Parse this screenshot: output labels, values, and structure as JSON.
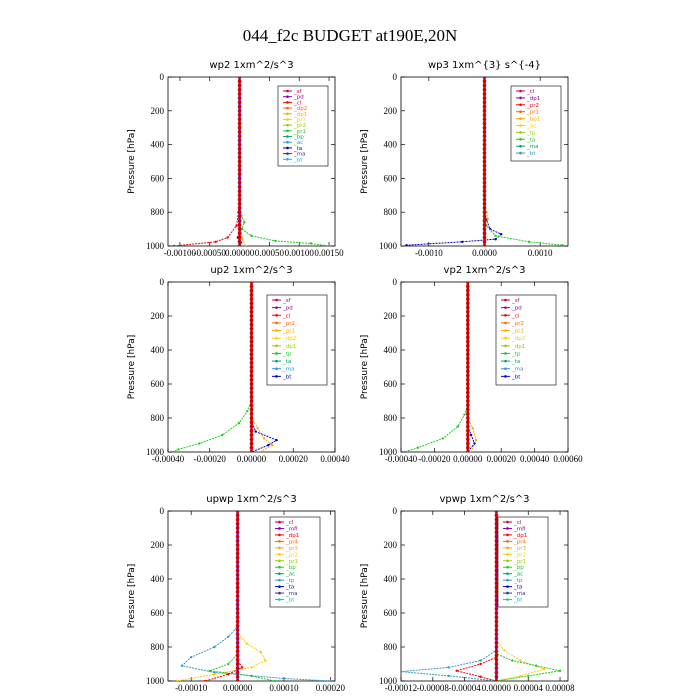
{
  "figure_title": "044_f2c  BUDGET at190E,20N",
  "chart_data": [
    {
      "type": "line",
      "title": "wp2   1xm^2/s^3",
      "ylabel": "Pressure [hPa]",
      "xlim": [
        -0.0012,
        0.0016
      ],
      "xticks": [
        -0.001,
        -0.0005,
        0.0,
        0.0005,
        0.001,
        0.0015
      ],
      "xtick_labels": [
        "-0.00100",
        "-0.00050",
        "0.00000",
        "0.00050",
        "0.00100",
        "0.00150"
      ],
      "ylim": [
        1000,
        0
      ],
      "yticks": [
        0,
        200,
        400,
        600,
        800,
        1000
      ],
      "legend_position": "top-right",
      "legend": [
        "_sf",
        "_pd",
        "_cl",
        "_dp2",
        "_dp1",
        "_pr3",
        "_pr2",
        "_pr1",
        "_bp",
        "_ac",
        "_ta",
        "_ma",
        "_bt"
      ],
      "series": [
        {
          "color": "#ff0000",
          "points": [
            [
              0,
              0
            ],
            [
              0,
              700
            ],
            [
              -2e-05,
              800
            ],
            [
              -5e-05,
              880
            ],
            [
              -0.0002,
              950
            ],
            [
              -0.0004,
              975
            ],
            [
              -0.0011,
              1000
            ]
          ]
        },
        {
          "color": "#22cc22",
          "points": [
            [
              0,
              0
            ],
            [
              0,
              780
            ],
            [
              3e-05,
              820
            ],
            [
              8e-05,
              860
            ],
            [
              4e-05,
              900
            ],
            [
              0.0002,
              940
            ],
            [
              0.0006,
              970
            ],
            [
              0.0012,
              985
            ],
            [
              0.0015,
              1000
            ]
          ]
        },
        {
          "color": "#ffaa00",
          "points": [
            [
              0,
              0
            ],
            [
              0,
              850
            ],
            [
              2e-05,
              920
            ],
            [
              5e-05,
              960
            ],
            [
              0.0001,
              1000
            ]
          ]
        },
        {
          "color": "#0000cc",
          "points": [
            [
              0,
              0
            ],
            [
              0,
              900
            ],
            [
              -3e-05,
              950
            ],
            [
              2e-05,
              980
            ],
            [
              0,
              1000
            ]
          ]
        },
        {
          "color": "#8800aa",
          "points": [
            [
              0,
              0
            ],
            [
              0,
              1000
            ]
          ]
        }
      ]
    },
    {
      "type": "line",
      "title": "wp3   1xm^{3} s^{-4}",
      "ylabel": "Pressure [hPa]",
      "xlim": [
        -0.0015,
        0.0015
      ],
      "xticks": [
        -0.001,
        0.0,
        0.001
      ],
      "xtick_labels": [
        "-0.0010",
        "0.0000",
        "0.0010"
      ],
      "ylim": [
        1000,
        0
      ],
      "yticks": [
        0,
        200,
        400,
        600,
        800,
        1000
      ],
      "legend_position": "top-right",
      "legend": [
        "_cl",
        "_dp1",
        "_pr2",
        "_pr1",
        "_bp1",
        "_ac",
        "_tp",
        "_ta",
        "_ma",
        "_bt"
      ],
      "series": [
        {
          "color": "#0000cc",
          "points": [
            [
              0,
              0
            ],
            [
              0,
              800
            ],
            [
              4e-05,
              850
            ],
            [
              0.0001,
              900
            ],
            [
              0.0003,
              930
            ],
            [
              0.0002,
              960
            ],
            [
              -0.0004,
              975
            ],
            [
              -0.0014,
              995
            ]
          ]
        },
        {
          "color": "#22cc22",
          "points": [
            [
              0,
              0
            ],
            [
              0,
              820
            ],
            [
              3e-05,
              880
            ],
            [
              0.0002,
              940
            ],
            [
              0.0008,
              975
            ],
            [
              0.0014,
              995
            ]
          ]
        },
        {
          "color": "#ffaa00",
          "points": [
            [
              0,
              0
            ],
            [
              0,
              780
            ],
            [
              4e-05,
              800
            ],
            [
              6e-05,
              840
            ],
            [
              0,
              880
            ],
            [
              0,
              1000
            ]
          ]
        },
        {
          "color": "#cc0000",
          "points": [
            [
              0,
              0
            ],
            [
              0,
              1000
            ]
          ]
        }
      ]
    },
    {
      "type": "line",
      "title": "up2   1xm^2/s^3",
      "ylabel": "Pressure [hPa]",
      "xlim": [
        -0.0004,
        0.0004
      ],
      "xticks": [
        -0.0004,
        -0.0002,
        0.0,
        0.0002,
        0.0004
      ],
      "xtick_labels": [
        "-0.00040",
        "-0.00020",
        "0.00000",
        "0.00020",
        "0.00040"
      ],
      "ylim": [
        1000,
        0
      ],
      "yticks": [
        0,
        200,
        400,
        600,
        800,
        1000
      ],
      "legend_position": "top-right",
      "legend": [
        "_sf",
        "_pd",
        "_cl",
        "_pr2",
        "_pr1",
        "_dp2",
        "_dp1",
        "_tp",
        "_ta",
        "_ma",
        "_bt"
      ],
      "series": [
        {
          "color": "#22cc22",
          "points": [
            [
              0,
              0
            ],
            [
              0,
              700
            ],
            [
              -2e-05,
              760
            ],
            [
              -6e-05,
              830
            ],
            [
              -0.00014,
              900
            ],
            [
              -0.00025,
              950
            ],
            [
              -0.00035,
              985
            ],
            [
              -0.00038,
              1000
            ]
          ]
        },
        {
          "color": "#ffaa00",
          "points": [
            [
              0,
              0
            ],
            [
              0,
              800
            ],
            [
              3e-05,
              860
            ],
            [
              6e-05,
              920
            ],
            [
              0.0001,
              960
            ],
            [
              4e-05,
              1000
            ]
          ]
        },
        {
          "color": "#0000cc",
          "points": [
            [
              0,
              0
            ],
            [
              0,
              820
            ],
            [
              2e-05,
              880
            ],
            [
              0.00012,
              930
            ],
            [
              8e-05,
              960
            ],
            [
              0,
              1000
            ]
          ]
        },
        {
          "color": "#cc0000",
          "points": [
            [
              0,
              0
            ],
            [
              0,
              1000
            ]
          ]
        }
      ]
    },
    {
      "type": "line",
      "title": "vp2   1xm^2/s^3",
      "ylabel": "Pressure [hPa]",
      "xlim": [
        -0.0004,
        0.0006
      ],
      "xticks": [
        -0.0004,
        -0.0002,
        0.0,
        0.0002,
        0.0004,
        0.0006
      ],
      "xtick_labels": [
        "-0.00040",
        "-0.00020",
        "0.00000",
        "0.00020",
        "0.00040",
        "0.00060"
      ],
      "ylim": [
        1000,
        0
      ],
      "yticks": [
        0,
        200,
        400,
        600,
        800,
        1000
      ],
      "legend_position": "top-right",
      "legend": [
        "_sf",
        "_pd",
        "_cl",
        "_pr2",
        "_pr1",
        "_dp2",
        "_dp1",
        "_tp",
        "_ta",
        "_ma",
        "_bt"
      ],
      "series": [
        {
          "color": "#22cc22",
          "points": [
            [
              0,
              0
            ],
            [
              0,
              720
            ],
            [
              -2e-05,
              780
            ],
            [
              -6e-05,
              850
            ],
            [
              -0.00015,
              920
            ],
            [
              -0.0003,
              975
            ],
            [
              -0.00038,
              1000
            ]
          ]
        },
        {
          "color": "#ffaa00",
          "points": [
            [
              0,
              0
            ],
            [
              0,
              800
            ],
            [
              3e-05,
              860
            ],
            [
              5e-05,
              930
            ],
            [
              2e-05,
              1000
            ]
          ]
        },
        {
          "color": "#0000cc",
          "points": [
            [
              0,
              0
            ],
            [
              0,
              850
            ],
            [
              2e-05,
              900
            ],
            [
              4e-05,
              950
            ],
            [
              0,
              1000
            ]
          ]
        },
        {
          "color": "#cc0000",
          "points": [
            [
              0,
              0
            ],
            [
              0,
              1000
            ]
          ]
        }
      ]
    },
    {
      "type": "line",
      "title": "upwp   1xm^2/s^3",
      "ylabel": "Pressure [hPa]",
      "xlim": [
        -0.00015,
        0.00021
      ],
      "xticks": [
        -0.0001,
        0.0,
        0.0001,
        0.0002
      ],
      "xtick_labels": [
        "-0.00010",
        "0.00000",
        "0.00010",
        "0.00020"
      ],
      "ylim": [
        1000,
        0
      ],
      "yticks": [
        0,
        200,
        400,
        600,
        800,
        1000
      ],
      "legend_position": "top-right",
      "legend": [
        "_cl",
        "_mfl",
        "_dp1",
        "_pr4",
        "_pr3",
        "_pr2",
        "_pr1",
        "_bp",
        "_ac",
        "_tp",
        "_ta",
        "_ma",
        "_bt"
      ],
      "series": [
        {
          "color": "#3399cc",
          "points": [
            [
              0,
              0
            ],
            [
              0,
              680
            ],
            [
              -2e-05,
              740
            ],
            [
              -5e-05,
              800
            ],
            [
              -0.0001,
              860
            ],
            [
              -0.00012,
              910
            ],
            [
              -5e-05,
              950
            ],
            [
              0.0001,
              985
            ],
            [
              0.0002,
              1000
            ]
          ]
        },
        {
          "color": "#ffcc00",
          "points": [
            [
              0,
              0
            ],
            [
              0,
              720
            ],
            [
              2e-05,
              780
            ],
            [
              5e-05,
              830
            ],
            [
              6e-05,
              880
            ],
            [
              3e-05,
              920
            ],
            [
              -5e-05,
              960
            ],
            [
              -0.00013,
              1000
            ]
          ]
        },
        {
          "color": "#22cc22",
          "points": [
            [
              0,
              0
            ],
            [
              0,
              840
            ],
            [
              -2e-05,
              900
            ],
            [
              -6e-05,
              940
            ],
            [
              3e-05,
              970
            ],
            [
              8e-05,
              1000
            ]
          ]
        },
        {
          "color": "#ff0000",
          "points": [
            [
              0,
              0
            ],
            [
              0,
              880
            ],
            [
              1e-05,
              920
            ],
            [
              -2e-05,
              960
            ],
            [
              -7e-05,
              1000
            ]
          ]
        },
        {
          "color": "#8800aa",
          "points": [
            [
              0,
              0
            ],
            [
              0,
              1000
            ]
          ]
        }
      ]
    },
    {
      "type": "line",
      "title": "vpwp   1xm^2/s^3",
      "ylabel": "Pressure [hPa]",
      "xlim": [
        -0.00012,
        9e-05
      ],
      "xticks": [
        -0.00012,
        -8e-05,
        -4e-05,
        0.0,
        4e-05,
        8e-05
      ],
      "xtick_labels": [
        "-0.00012",
        "-0.00008",
        "-0.00004",
        "0.00000",
        "0.00004",
        "0.00008"
      ],
      "ylim": [
        1000,
        0
      ],
      "yticks": [
        0,
        200,
        400,
        600,
        800,
        1000
      ],
      "legend_position": "top-right",
      "legend": [
        "_cl",
        "_mfl",
        "_dp1",
        "_pr4",
        "_pr3",
        "_pr2",
        "_pr1",
        "_bp",
        "_ac",
        "_tp",
        "_ta",
        "_ma",
        "_bt"
      ],
      "series": [
        {
          "color": "#3399cc",
          "points": [
            [
              0,
              0
            ],
            [
              0,
              820
            ],
            [
              -2e-05,
              880
            ],
            [
              -6e-05,
              920
            ],
            [
              -0.00012,
              945
            ],
            [
              -6e-05,
              970
            ],
            [
              0,
              1000
            ]
          ]
        },
        {
          "color": "#ffcc00",
          "points": [
            [
              0,
              0
            ],
            [
              0,
              760
            ],
            [
              1e-05,
              820
            ],
            [
              3e-05,
              880
            ],
            [
              6e-05,
              930
            ],
            [
              3e-05,
              970
            ],
            [
              0,
              1000
            ]
          ]
        },
        {
          "color": "#22cc22",
          "points": [
            [
              0,
              0
            ],
            [
              0,
              840
            ],
            [
              2e-05,
              880
            ],
            [
              5e-05,
              910
            ],
            [
              8e-05,
              940
            ],
            [
              4e-05,
              970
            ],
            [
              0,
              1000
            ]
          ]
        },
        {
          "color": "#ff0000",
          "points": [
            [
              0,
              0
            ],
            [
              0,
              860
            ],
            [
              -2e-05,
              900
            ],
            [
              -5e-05,
              940
            ],
            [
              -2e-05,
              975
            ],
            [
              0,
              1000
            ]
          ]
        },
        {
          "color": "#8800aa",
          "points": [
            [
              0,
              0
            ],
            [
              0,
              1000
            ]
          ]
        }
      ]
    }
  ],
  "legend_colors": [
    "#cc0033",
    "#8800aa",
    "#ff0000",
    "#ff6600",
    "#ffaa00",
    "#ffcc00",
    "#99cc00",
    "#22cc22",
    "#00aa66",
    "#3399cc",
    "#0000cc",
    "#333399",
    "#00cccc"
  ]
}
